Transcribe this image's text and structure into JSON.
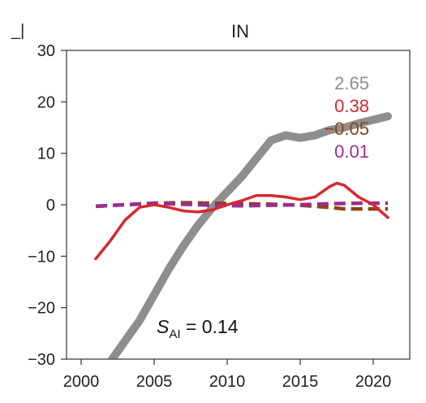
{
  "chart_data": {
    "type": "line",
    "title": "IN",
    "corner_mark": "_|",
    "xlabel": "",
    "ylabel": "",
    "xlim": [
      1999,
      2022.5
    ],
    "ylim": [
      -30,
      30
    ],
    "x_ticks": [
      2000,
      2005,
      2010,
      2015,
      2020
    ],
    "y_ticks": [
      30,
      20,
      10,
      0,
      -10,
      -20,
      -30
    ],
    "y_tick_labels": [
      "30",
      "20",
      "10",
      "0",
      "−10",
      "−20",
      "−30"
    ],
    "grid": false,
    "series": [
      {
        "color": "#8e8e8e",
        "style": "solid-thick",
        "trend_label": "2.65",
        "x": [
          2002,
          2003,
          2004,
          2005,
          2006,
          2007,
          2008,
          2009,
          2010,
          2011,
          2012,
          2013,
          2014,
          2015,
          2016,
          2017,
          2018,
          2019,
          2020,
          2021
        ],
        "values": [
          -30.5,
          -26.5,
          -22.5,
          -17.5,
          -12.5,
          -8.0,
          -4.0,
          -0.5,
          2.5,
          5.5,
          9.0,
          12.5,
          13.5,
          13.0,
          13.5,
          14.5,
          15.0,
          15.8,
          16.5,
          17.2
        ]
      },
      {
        "color": "#d9272e",
        "style": "solid",
        "trend_label": "0.38",
        "x": [
          2001,
          2002,
          2003,
          2004,
          2005,
          2006,
          2007,
          2008,
          2009,
          2010,
          2011,
          2012,
          2013,
          2014,
          2015,
          2016,
          2017,
          2017.5,
          2018,
          2019,
          2020,
          2021
        ],
        "values": [
          -10.5,
          -7.0,
          -3.0,
          -0.5,
          0.0,
          -0.5,
          -1.2,
          -1.4,
          -1.0,
          0.0,
          0.8,
          1.8,
          1.8,
          1.5,
          1.0,
          1.5,
          3.5,
          4.2,
          3.8,
          1.5,
          0.0,
          -2.5
        ]
      },
      {
        "color": "#8b4513",
        "style": "dashed",
        "trend_label": "−0.05",
        "x": [
          2001,
          2003,
          2005,
          2007,
          2009,
          2011,
          2013,
          2015,
          2017,
          2018,
          2019,
          2021
        ],
        "values": [
          -0.3,
          0.0,
          0.3,
          0.4,
          0.3,
          0.2,
          0.1,
          -0.1,
          -0.5,
          -0.8,
          -0.8,
          -0.8
        ]
      },
      {
        "color": "#9a2e8f",
        "style": "dashed",
        "trend_label": "0.01",
        "x": [
          2001,
          2003,
          2005,
          2007,
          2009,
          2011,
          2013,
          2015,
          2017,
          2019,
          2021
        ],
        "values": [
          -0.3,
          0.0,
          0.3,
          0.1,
          -0.1,
          -0.2,
          -0.1,
          0.0,
          0.2,
          0.3,
          0.3
        ]
      }
    ],
    "annotation": {
      "symbol": "S",
      "subscript": "AI",
      "text": " = 0.14"
    }
  }
}
